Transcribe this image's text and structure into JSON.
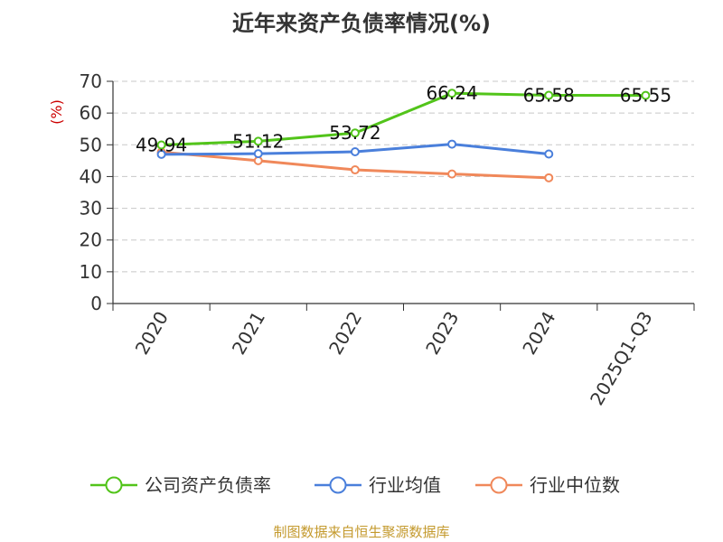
{
  "title": "近年来资产负债率情况(%)",
  "source": "制图数据来自恒生聚源数据库",
  "chart_data": {
    "type": "line",
    "ylabel": "(%)",
    "ylim": [
      0,
      70
    ],
    "y_ticks": [
      0,
      10,
      20,
      30,
      40,
      50,
      60,
      70
    ],
    "categories": [
      "2020",
      "2021",
      "2022",
      "2023",
      "2024",
      "2025Q1-Q3"
    ],
    "grid": true,
    "legend_position": "bottom",
    "series": [
      {
        "name": "公司资产负债率",
        "color": "#52c41a",
        "values": [
          49.94,
          51.12,
          53.72,
          66.24,
          65.58,
          65.55
        ],
        "labels": [
          "49.94",
          "51.12",
          "53.72",
          "66.24",
          "65.58",
          "65.55"
        ]
      },
      {
        "name": "行业均值",
        "color": "#4a7fdb",
        "values": [
          47.0,
          47.2,
          47.8,
          50.2,
          47.1,
          null
        ]
      },
      {
        "name": "行业中位数",
        "color": "#f0885a",
        "values": [
          47.7,
          45.0,
          42.1,
          40.8,
          39.6,
          null
        ]
      }
    ]
  }
}
